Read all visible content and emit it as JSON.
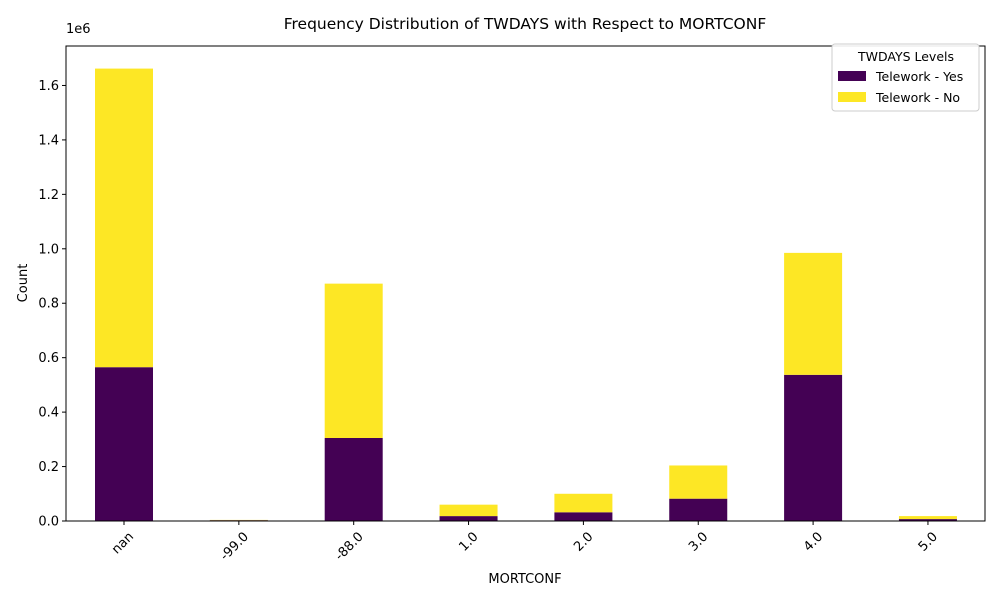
{
  "chart_data": {
    "type": "bar",
    "stacked": true,
    "title": "Frequency Distribution of TWDAYS with Respect to MORTCONF",
    "xlabel": "MORTCONF",
    "ylabel": "Count",
    "y_offset_label": "1e6",
    "categories": [
      "nan",
      "-99.0",
      "-88.0",
      "1.0",
      "2.0",
      "3.0",
      "4.0",
      "5.0"
    ],
    "series": [
      {
        "name": "Telework - Yes",
        "color": "#440154",
        "values": [
          565000,
          3000,
          305000,
          18000,
          32000,
          82000,
          537000,
          7000
        ]
      },
      {
        "name": "Telework - No",
        "color": "#fde725",
        "values": [
          1097000,
          1000,
          567000,
          42000,
          68000,
          122000,
          448000,
          11000
        ]
      }
    ],
    "ylim": [
      0,
      1745000
    ],
    "yticks": [
      0,
      200000,
      400000,
      600000,
      800000,
      1000000,
      1200000,
      1400000,
      1600000
    ],
    "ytick_labels": [
      "0.0",
      "0.2",
      "0.4",
      "0.6",
      "0.8",
      "1.0",
      "1.2",
      "1.4",
      "1.6"
    ],
    "legend": {
      "title": "TWDAYS Levels",
      "position": "top-right"
    },
    "grid": false
  }
}
